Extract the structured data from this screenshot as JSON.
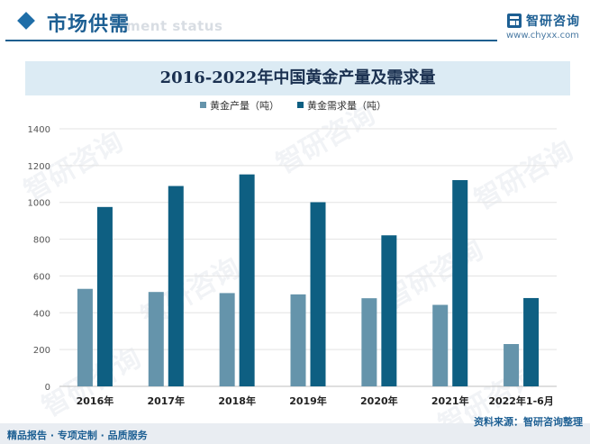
{
  "header": {
    "section_title": "市场供需",
    "ghost_subtitle": "ment status",
    "brand_name": "智研咨询",
    "brand_url": "www.chyxx.com"
  },
  "watermark": "智研咨询",
  "footer": {
    "left_text": "精品报告 · 专项定制 · 品质服务",
    "right_text": "资料来源：智研咨询整理"
  },
  "colors": {
    "accent": "#1f6ea8",
    "production": "#6594ab",
    "demand": "#0e5f82",
    "title_band": "#dcebf4"
  },
  "chart_data": {
    "type": "bar",
    "title": "2016-2022年中国黄金产量及需求量",
    "categories": [
      "2016年",
      "2017年",
      "2018年",
      "2019年",
      "2020年",
      "2021年",
      "2022年1-6月"
    ],
    "series": [
      {
        "name": "黄金产量（吨）",
        "values": [
          530,
          513,
          507,
          500,
          479,
          443,
          230
        ]
      },
      {
        "name": "黄金需求量（吨）",
        "values": [
          975,
          1089,
          1152,
          1001,
          821,
          1121,
          480
        ]
      }
    ],
    "yticks": [
      0,
      200,
      400,
      600,
      800,
      1000,
      1200,
      1400
    ],
    "ylim": [
      0,
      1400
    ],
    "grid": true,
    "legend_position": "top-center"
  }
}
